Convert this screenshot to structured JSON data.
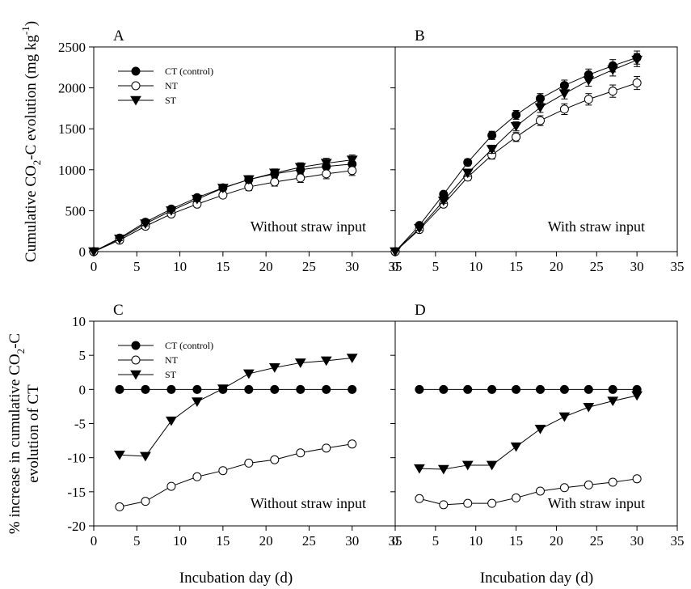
{
  "colors": {
    "axis": "#000000",
    "CT": "#000000",
    "NT": "#ffffff",
    "ST": "#000000"
  },
  "figure": {
    "xlabel_left": "Incubation day (d)",
    "xlabel_right": "Incubation day (d)",
    "ylabel_top": "Cumulative CO2-C evolution (mg kg-1)",
    "ylabel_top_parts": {
      "a": "Cumulative CO",
      "sub": "2",
      "b": "-C evolution (mg kg",
      "sup": "-1",
      "c": ")"
    },
    "ylabel_bottom_line1": "% increase in cumulative CO2-C",
    "ylabel_bottom_line1_parts": {
      "a": "% increase in cumulative CO",
      "sub": "2",
      "b": "-C"
    },
    "ylabel_bottom_line2": "evolution of CT"
  },
  "chart_data": [
    {
      "panel": "A",
      "type": "line",
      "annotation": "Without straw input",
      "legend": true,
      "legend_position": "top-left",
      "xlim": [
        0,
        35
      ],
      "ylim": [
        0,
        2500
      ],
      "xticks": [
        0,
        5,
        10,
        15,
        20,
        25,
        30,
        35
      ],
      "yticks": [
        0,
        500,
        1000,
        1500,
        2000,
        2500
      ],
      "x": [
        0,
        3,
        6,
        9,
        12,
        15,
        18,
        21,
        24,
        27,
        30
      ],
      "series": [
        {
          "name": "CT (control)",
          "marker": "filled-circle",
          "values": [
            0,
            165,
            360,
            520,
            660,
            780,
            880,
            950,
            1000,
            1040,
            1070
          ],
          "error": [
            0,
            20,
            25,
            30,
            30,
            35,
            45,
            50,
            55,
            60,
            60
          ]
        },
        {
          "name": "NT",
          "marker": "open-circle",
          "values": [
            0,
            140,
            310,
            460,
            580,
            690,
            790,
            850,
            900,
            950,
            990
          ],
          "error": [
            0,
            20,
            25,
            30,
            30,
            35,
            45,
            50,
            55,
            60,
            60
          ]
        },
        {
          "name": "ST",
          "marker": "filled-triangle-down",
          "values": [
            0,
            155,
            340,
            500,
            640,
            775,
            880,
            960,
            1030,
            1080,
            1120
          ],
          "error": [
            0,
            20,
            25,
            30,
            30,
            35,
            45,
            50,
            55,
            60,
            60
          ]
        }
      ]
    },
    {
      "panel": "B",
      "type": "line",
      "annotation": "With straw input",
      "legend": false,
      "xlim": [
        0,
        35
      ],
      "ylim": [
        0,
        2500
      ],
      "xticks": [
        0,
        5,
        10,
        15,
        20,
        25,
        30,
        35
      ],
      "yticks": [
        0,
        500,
        1000,
        1500,
        2000,
        2500
      ],
      "x": [
        0,
        3,
        6,
        9,
        12,
        15,
        18,
        21,
        24,
        27,
        30
      ],
      "series": [
        {
          "name": "CT (control)",
          "marker": "filled-circle",
          "values": [
            0,
            320,
            700,
            1090,
            1420,
            1670,
            1870,
            2030,
            2160,
            2270,
            2370
          ],
          "error": [
            0,
            25,
            30,
            40,
            50,
            55,
            60,
            65,
            70,
            75,
            80
          ]
        },
        {
          "name": "NT",
          "marker": "open-circle",
          "values": [
            0,
            270,
            580,
            910,
            1180,
            1400,
            1600,
            1740,
            1860,
            1960,
            2060
          ],
          "error": [
            0,
            25,
            30,
            40,
            50,
            55,
            60,
            65,
            70,
            75,
            80
          ]
        },
        {
          "name": "ST",
          "marker": "filled-triangle-down",
          "values": [
            0,
            285,
            620,
            960,
            1250,
            1530,
            1760,
            1930,
            2090,
            2220,
            2340
          ],
          "error": [
            0,
            25,
            30,
            40,
            50,
            55,
            60,
            65,
            70,
            75,
            80
          ]
        }
      ]
    },
    {
      "panel": "C",
      "type": "line",
      "annotation": "Without straw input",
      "legend": true,
      "legend_position": "top-left",
      "xlim": [
        0,
        35
      ],
      "ylim": [
        -20,
        10
      ],
      "xticks": [
        0,
        5,
        10,
        15,
        20,
        25,
        30,
        35
      ],
      "yticks": [
        -20,
        -15,
        -10,
        -5,
        0,
        5,
        10
      ],
      "x": [
        3,
        6,
        9,
        12,
        15,
        18,
        21,
        24,
        27,
        30
      ],
      "series": [
        {
          "name": "CT (control)",
          "marker": "filled-circle",
          "values": [
            0,
            0,
            0,
            0,
            0,
            0,
            0,
            0,
            0,
            0
          ]
        },
        {
          "name": "NT",
          "marker": "open-circle",
          "values": [
            -17.2,
            -16.4,
            -14.2,
            -12.8,
            -11.9,
            -10.8,
            -10.3,
            -9.3,
            -8.6,
            -8.0
          ]
        },
        {
          "name": "ST",
          "marker": "filled-triangle-down",
          "values": [
            -9.6,
            -9.8,
            -4.6,
            -1.8,
            0.1,
            2.3,
            3.2,
            3.9,
            4.2,
            4.6
          ]
        }
      ]
    },
    {
      "panel": "D",
      "type": "line",
      "annotation": "With straw input",
      "legend": false,
      "xlim": [
        0,
        35
      ],
      "ylim": [
        -20,
        10
      ],
      "xticks": [
        0,
        5,
        10,
        15,
        20,
        25,
        30,
        35
      ],
      "yticks": [
        -20,
        -15,
        -10,
        -5,
        0,
        5,
        10
      ],
      "x": [
        3,
        6,
        9,
        12,
        15,
        18,
        21,
        24,
        27,
        30
      ],
      "series": [
        {
          "name": "CT (control)",
          "marker": "filled-circle",
          "values": [
            0,
            0,
            0,
            0,
            0,
            0,
            0,
            0,
            0,
            0
          ]
        },
        {
          "name": "NT",
          "marker": "open-circle",
          "values": [
            -16.0,
            -16.9,
            -16.7,
            -16.7,
            -15.9,
            -14.9,
            -14.4,
            -14.0,
            -13.6,
            -13.1
          ]
        },
        {
          "name": "ST",
          "marker": "filled-triangle-down",
          "values": [
            -11.6,
            -11.7,
            -11.1,
            -11.1,
            -8.4,
            -5.8,
            -4.0,
            -2.6,
            -1.7,
            -0.9
          ]
        }
      ]
    }
  ]
}
